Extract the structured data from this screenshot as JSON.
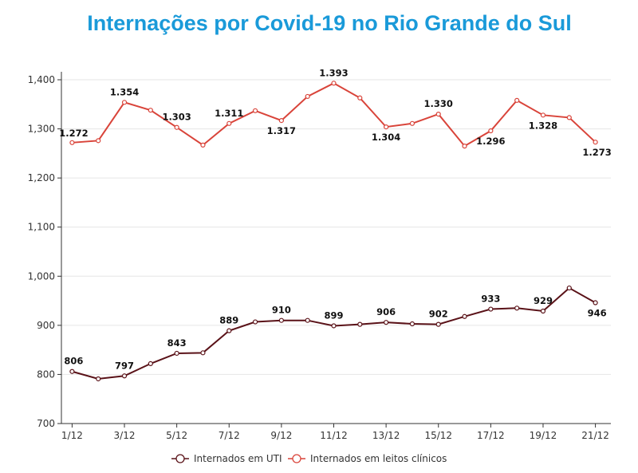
{
  "chart_data": {
    "type": "line",
    "title": "Internações por Covid-19 no Rio Grande do Sul",
    "x": [
      "1/12",
      "2/12",
      "3/12",
      "4/12",
      "5/12",
      "6/12",
      "7/12",
      "8/12",
      "9/12",
      "10/12",
      "11/12",
      "12/12",
      "13/12",
      "14/12",
      "15/12",
      "16/12",
      "17/12",
      "18/12",
      "19/12",
      "20/12",
      "21/12"
    ],
    "x_tick_labels": [
      "1/12",
      "3/12",
      "5/12",
      "7/12",
      "9/12",
      "11/12",
      "13/12",
      "15/12",
      "17/12",
      "19/12",
      "21/12"
    ],
    "ylim": [
      700,
      1400
    ],
    "y_ticks": [
      700,
      800,
      900,
      1000,
      1100,
      1200,
      1300,
      1400
    ],
    "y_tick_labels": [
      "700",
      "800",
      "900",
      "1,000",
      "1,100",
      "1,200",
      "1,300",
      "1,400"
    ],
    "grid": "horizontal",
    "legend_position": "bottom",
    "series": [
      {
        "name": "Internados em UTI",
        "color": "#5a1218",
        "values": [
          806,
          791,
          797,
          822,
          843,
          844,
          889,
          907,
          910,
          910,
          899,
          902,
          906,
          903,
          902,
          918,
          933,
          935,
          929,
          976,
          946
        ],
        "data_labels": [
          "806",
          "",
          "797",
          "",
          "843",
          "",
          "889",
          "",
          "910",
          "",
          "899",
          "",
          "906",
          "",
          "902",
          "",
          "933",
          "",
          "929",
          "",
          "946"
        ]
      },
      {
        "name": "Internados em leitos clínicos",
        "color": "#d9443a",
        "values": [
          1272,
          1276,
          1354,
          1338,
          1303,
          1267,
          1311,
          1337,
          1317,
          1366,
          1393,
          1363,
          1304,
          1311,
          1330,
          1265,
          1296,
          1358,
          1328,
          1323,
          1273
        ],
        "data_labels": [
          "1.272",
          "",
          "1.354",
          "",
          "1.303",
          "",
          "1.311",
          "",
          "1.317",
          "",
          "1.393",
          "",
          "1.304",
          "",
          "1.330",
          "",
          "1.296",
          "",
          "1.328",
          "",
          "1.273"
        ]
      }
    ]
  }
}
